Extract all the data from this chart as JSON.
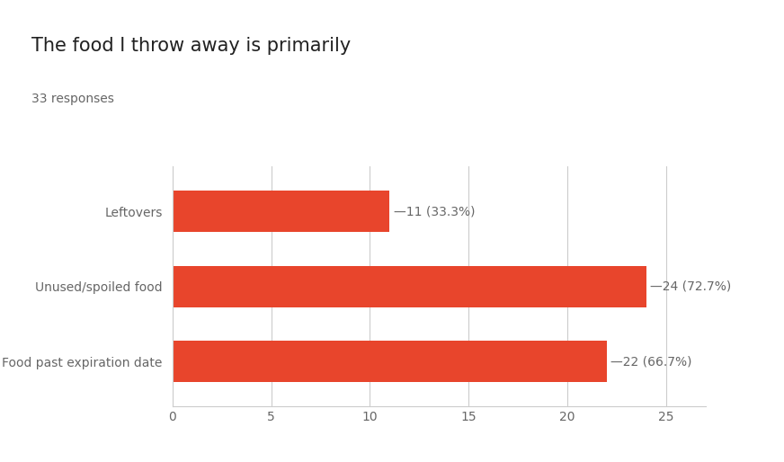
{
  "title": "The food I throw away is primarily",
  "subtitle": "33 responses",
  "categories": [
    "Food past expiration date",
    "Unused/spoiled food",
    "Leftovers"
  ],
  "values": [
    22,
    24,
    11
  ],
  "labels": [
    "22 (66.7%)",
    "24 (72.7%)",
    "11 (33.3%)"
  ],
  "bar_color": "#E8452C",
  "background_color": "#ffffff",
  "xlim": [
    0,
    27
  ],
  "xticks": [
    0,
    5,
    10,
    15,
    20,
    25
  ],
  "title_fontsize": 15,
  "subtitle_fontsize": 10,
  "label_fontsize": 10,
  "yticklabel_fontsize": 10,
  "tick_fontsize": 10,
  "grid_color": "#cccccc",
  "text_color": "#666666",
  "title_color": "#212121",
  "bar_height": 0.55
}
